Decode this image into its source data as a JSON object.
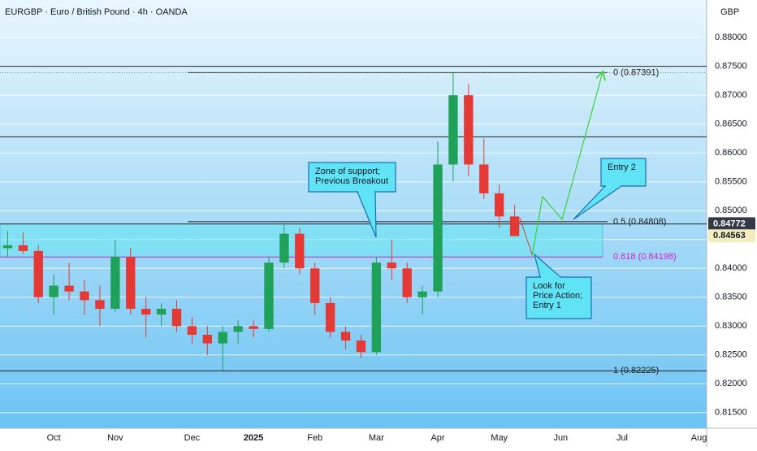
{
  "chart_data": {
    "type": "candlestick",
    "title": "EURGBP · Euro / British Pound · 4h · OANDA",
    "currency": "GBP",
    "categories": [
      null,
      null,
      null,
      "Oct",
      null,
      null,
      null,
      "Nov",
      null,
      null,
      null,
      null,
      "Dec",
      null,
      null,
      null,
      "2025",
      null,
      null,
      null,
      "Feb",
      null,
      null,
      null,
      "Mar",
      null,
      null,
      null,
      "Apr",
      null,
      null,
      null,
      "May",
      null,
      null,
      null,
      "Jun",
      null,
      null,
      null,
      "Jul",
      null,
      null,
      null,
      null,
      "Aug"
    ],
    "open": [
      0.8435,
      0.844,
      0.843,
      0.835,
      0.837,
      0.836,
      0.8345,
      0.833,
      0.842,
      0.833,
      0.832,
      0.833,
      0.83,
      0.8285,
      0.827,
      0.829,
      0.83,
      0.8295,
      0.841,
      0.846,
      0.84,
      0.834,
      0.829,
      0.8275,
      0.8255,
      0.841,
      0.84,
      0.835,
      0.836,
      0.858,
      0.87,
      0.858,
      0.853,
      0.849,
      null,
      null,
      null,
      null,
      null,
      null,
      null,
      null,
      null,
      null,
      null,
      null
    ],
    "high": [
      0.8465,
      0.8462,
      0.844,
      0.839,
      0.841,
      0.838,
      0.837,
      0.845,
      0.8435,
      0.835,
      0.834,
      0.8345,
      0.8315,
      0.83,
      0.83,
      0.831,
      0.831,
      0.842,
      0.8475,
      0.847,
      0.841,
      0.835,
      0.83,
      0.8285,
      0.842,
      0.845,
      0.841,
      0.837,
      0.862,
      0.8739,
      0.872,
      0.8625,
      0.8545,
      0.851,
      null,
      null,
      null,
      null,
      null,
      null,
      null,
      null,
      null,
      null,
      null,
      null
    ],
    "low": [
      0.842,
      0.8425,
      0.834,
      0.832,
      0.8345,
      0.832,
      0.83,
      0.8325,
      0.832,
      0.828,
      0.83,
      0.829,
      0.827,
      0.825,
      0.8223,
      0.827,
      0.828,
      0.829,
      0.84,
      0.839,
      0.832,
      0.828,
      0.826,
      0.8245,
      0.825,
      0.838,
      0.834,
      0.832,
      0.835,
      0.855,
      0.856,
      0.852,
      0.847,
      0.8456,
      null,
      null,
      null,
      null,
      null,
      null,
      null,
      null,
      null,
      null,
      null,
      null
    ],
    "close": [
      0.844,
      0.843,
      0.835,
      0.837,
      0.836,
      0.8345,
      0.833,
      0.842,
      0.833,
      0.832,
      0.833,
      0.83,
      0.8285,
      0.827,
      0.829,
      0.83,
      0.8295,
      0.841,
      0.846,
      0.84,
      0.834,
      0.829,
      0.8275,
      0.8255,
      0.841,
      0.84,
      0.835,
      0.836,
      0.858,
      0.87,
      0.858,
      0.853,
      0.849,
      0.8456,
      null,
      null,
      null,
      null,
      null,
      null,
      null,
      null,
      null,
      null,
      null,
      null
    ],
    "up_color": "#1fa15a",
    "down_color": "#e53935",
    "ylim": [
      0.8123,
      0.8865
    ],
    "yticks": [
      {
        "value": 0.815,
        "label": "0.81500"
      },
      {
        "value": 0.82,
        "label": "0.82000"
      },
      {
        "value": 0.825,
        "label": "0.82500"
      },
      {
        "value": 0.83,
        "label": "0.83000"
      },
      {
        "value": 0.835,
        "label": "0.83500"
      },
      {
        "value": 0.84,
        "label": "0.84000"
      },
      {
        "value": 0.845,
        "label": "0.84500"
      },
      {
        "value": 0.85,
        "label": "0.85000"
      },
      {
        "value": 0.855,
        "label": "0.85500"
      },
      {
        "value": 0.86,
        "label": "0.86000"
      },
      {
        "value": 0.865,
        "label": "0.86500"
      },
      {
        "value": 0.87,
        "label": "0.87000"
      },
      {
        "value": 0.875,
        "label": "0.87500"
      },
      {
        "value": 0.88,
        "label": "0.88000"
      }
    ],
    "grid": true,
    "lines": [
      0.875,
      0.8628,
      0.8477
    ],
    "zone": [
      0.84198,
      0.8477
    ],
    "levels": [
      {
        "value": 0.87391,
        "label": "0 (0.87391)",
        "color": "#222222"
      },
      {
        "value": 0.84808,
        "label": "0.5 (0.84808)",
        "color": "#222222"
      },
      {
        "value": 0.84198,
        "label": "0.618 (0.84198)",
        "color": "#d81bd8"
      },
      {
        "value": 0.82225,
        "label": "1 (0.82225)",
        "color": "#222222"
      }
    ],
    "price_labels": [
      {
        "value": 0.84772,
        "label": "0.84772",
        "color": "#333a45"
      },
      {
        "value": 0.84563,
        "label": "0.84563",
        "color": "#f2eec0"
      }
    ],
    "annotations": [
      {
        "lines": [
          "Zone of support;",
          "Previous Breakout"
        ]
      },
      {
        "lines": [
          "Entry 2"
        ]
      },
      {
        "lines": [
          "Look for",
          "Price Action;",
          "Entry 1"
        ]
      }
    ]
  }
}
